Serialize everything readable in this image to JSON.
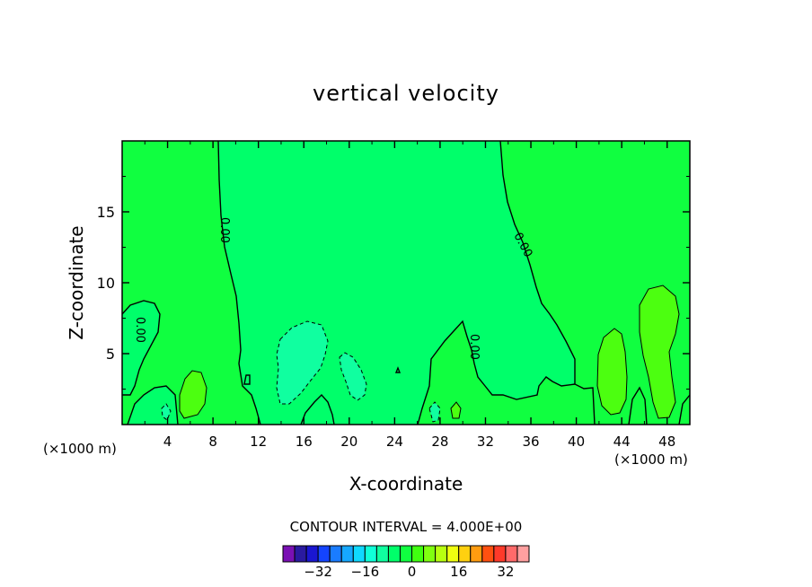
{
  "chart_data": {
    "type": "heatmap",
    "title": "vertical velocity",
    "xlabel": "X-coordinate",
    "ylabel": "Z-coordinate",
    "x_unit_left": "(×1000 m)",
    "x_unit_right": "(×1000 m)",
    "xlim": [
      0,
      50
    ],
    "ylim": [
      0,
      20
    ],
    "x_ticks": [
      "4",
      "8",
      "12",
      "16",
      "20",
      "24",
      "28",
      "32",
      "36",
      "40",
      "44",
      "48"
    ],
    "y_ticks": [
      "5",
      "10",
      "15"
    ],
    "contour_label": "0.00",
    "contour_interval_text": "CONTOUR INTERVAL = 4.000E+00",
    "colorbar": {
      "ticks": [
        "-32",
        "-16",
        "0",
        "16",
        "32"
      ],
      "levels": [
        -40,
        -36,
        -32,
        -28,
        -24,
        -20,
        -16,
        -12,
        -8,
        -4,
        0,
        4,
        8,
        12,
        16,
        20,
        24,
        28,
        32,
        36,
        40
      ],
      "colors": [
        "#7a10b4",
        "#2a1aa0",
        "#1a16d0",
        "#1444ff",
        "#1a7cff",
        "#16a8ff",
        "#10d8ff",
        "#10ffd8",
        "#10ffa0",
        "#00ff6a",
        "#10ff40",
        "#40ff10",
        "#80ff10",
        "#b8ff10",
        "#f0ff10",
        "#ffd010",
        "#ff9c10",
        "#ff5010",
        "#ff3a2a",
        "#ff6a6a",
        "#ffa0a0"
      ]
    },
    "field_colors": {
      "positive_weak": "#10ff40",
      "negative_weak": "#00ff6a",
      "positive_moderate": "#4cff10",
      "negative_moderate": "#10ffa0"
    },
    "grid": false
  }
}
